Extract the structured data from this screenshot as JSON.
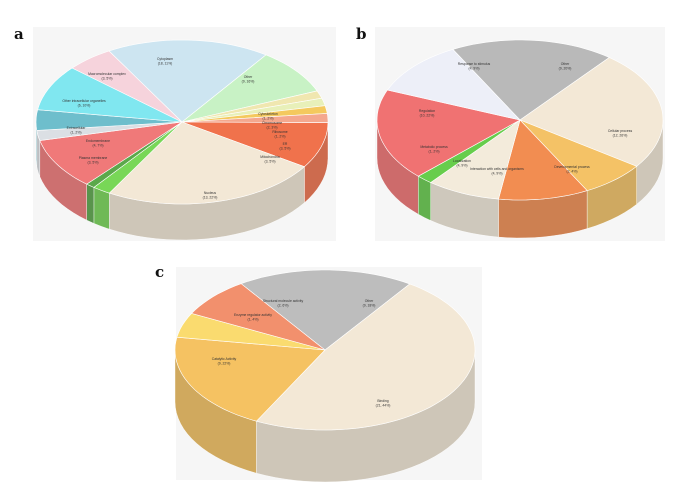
{
  "panels": [
    {
      "label": "a"
    },
    {
      "label": "b"
    },
    {
      "label": "c"
    }
  ],
  "chart_data": [
    {
      "type": "pie",
      "title": "",
      "slices": [
        {
          "name": "Cytoplasm",
          "display": "(18, 11%)",
          "value": 18,
          "color": "#c9e3f1"
        },
        {
          "name": "Other",
          "display": "(9, 16%)",
          "value": 9,
          "color": "#c3f2c0"
        },
        {
          "name": "Cytoskeleton",
          "display": "(1, 2%)",
          "value": 1.5,
          "color": "#efe6a8"
        },
        {
          "name": "Chromosome",
          "display": "(2, 3%)",
          "value": 1.5,
          "color": "#e7efb3"
        },
        {
          "name": "Ribosome",
          "display": "(1, 2%)",
          "value": 1.5,
          "color": "#f4c44e"
        },
        {
          "name": "ER",
          "display": "(3, 5%)",
          "value": 1.8,
          "color": "#f4a083"
        },
        {
          "name": "Mitochondria",
          "display": "(3, 5%)",
          "value": 9,
          "color": "#f0643a"
        },
        {
          "name": "Nucleus",
          "display": "(13, 22%)",
          "value": 24,
          "color": "#f3e7d3"
        },
        {
          "name": "Extracellular",
          "display": "",
          "value": 2,
          "color": "#6ad446"
        },
        {
          "name": "Plasma membrane (dark)",
          "display": "",
          "value": 1,
          "color": "#4aa038"
        },
        {
          "name": "Endomembrane",
          "display": "(4, 7%)",
          "value": 10,
          "color": "#f06b6b"
        },
        {
          "name": "Plasma membrane",
          "display": "(3, 5%)",
          "value": 2,
          "color": "#d8dde2"
        },
        {
          "name": "Extracellular",
          "display": "(1, 2%)",
          "value": 4,
          "color": "#5fb8c8"
        },
        {
          "name": "Other intracellular organelles",
          "display": "(6, 10%)",
          "value": 9,
          "color": "#73e5f0"
        },
        {
          "name": "Macromolecular complex",
          "display": "(3, 5%)",
          "value": 5.2,
          "color": "#f6cfd9"
        }
      ],
      "labels": [
        {
          "text": "Cytoplasm",
          "value": "(18, 11%)"
        },
        {
          "text": "Other",
          "value": "(9, 16%)"
        },
        {
          "text": "Cytoskeleton",
          "value": "(1, 2%)"
        },
        {
          "text": "Chromosome",
          "value": "(2, 3%)"
        },
        {
          "text": "Ribosome",
          "value": "(1, 2%)"
        },
        {
          "text": "ER",
          "value": "(3, 5%)"
        },
        {
          "text": "Mitochondria",
          "value": "(3, 5%)"
        },
        {
          "text": "Nucleus",
          "value": "(13, 22%)"
        },
        {
          "text": "Extracellular",
          "value": "(1, 2%)"
        },
        {
          "text": "Endomembrane",
          "value": "(4, 7%)"
        },
        {
          "text": "Plasma membrane",
          "value": "(3, 5%)"
        },
        {
          "text": "Other intracellular organelles",
          "value": "(6, 10%)"
        },
        {
          "text": "Macromolecular complex",
          "value": "(3, 5%)"
        }
      ]
    },
    {
      "type": "pie",
      "title": "",
      "slices": [
        {
          "name": "Other",
          "display": "(9, 20%)",
          "value": 20,
          "color": "#b2b2b2"
        },
        {
          "name": "Cellular process",
          "display": "(12, 26%)",
          "value": 26,
          "color": "#f3e7d3"
        },
        {
          "name": "Developmental process",
          "display": "(2, 4%)",
          "value": 8,
          "color": "#f4bd56"
        },
        {
          "name": "Interaction with cells and organisms",
          "display": "(4, 9%)",
          "value": 11,
          "color": "#f2823f"
        },
        {
          "name": "Localization",
          "display": "(4, 9%)",
          "value": 9,
          "color": "#f3ead8"
        },
        {
          "name": "Metabolic process",
          "display": "(1, 2%)",
          "value": 2,
          "color": "#58c93a"
        },
        {
          "name": "Regulation",
          "display": "(10, 22%)",
          "value": 20,
          "color": "#f06464"
        },
        {
          "name": "Response to stimulus",
          "display": "(4, 9%)",
          "value": 12,
          "color": "#eceef8"
        }
      ],
      "labels": [
        {
          "text": "Other",
          "value": "(9, 20%)"
        },
        {
          "text": "Cellular process",
          "value": "(12, 26%)"
        },
        {
          "text": "Developmental process",
          "value": "(2, 4%)"
        },
        {
          "text": "Interaction with cells and organisms",
          "value": "(4, 9%)"
        },
        {
          "text": "Localization",
          "value": "(4, 9%)"
        },
        {
          "text": "Metabolic process",
          "value": "(1, 2%)"
        },
        {
          "text": "Regulation",
          "value": "(10, 22%)"
        },
        {
          "text": "Response to stimulus",
          "value": "(4, 9%)"
        }
      ]
    },
    {
      "type": "pie",
      "title": "",
      "slices": [
        {
          "name": "Other",
          "display": "(9, 18%)",
          "value": 19,
          "color": "#b7b7b7"
        },
        {
          "name": "Binding",
          "display": "(21, 44%)",
          "value": 48,
          "color": "#f3e7d3"
        },
        {
          "name": "Catalytic Activity",
          "display": "(9, 22%)",
          "value": 20,
          "color": "#f5bd52"
        },
        {
          "name": "Enzyme regulator activity",
          "display": "(1, 4%)",
          "value": 5,
          "color": "#fbd861"
        },
        {
          "name": "Structural molecule activity",
          "display": "(2, 6%)",
          "value": 8,
          "color": "#f2855e"
        }
      ],
      "labels": [
        {
          "text": "Other",
          "value": "(9, 18%)"
        },
        {
          "text": "Binding",
          "value": "(21, 44%)"
        },
        {
          "text": "Catalytic Activity",
          "value": "(9, 22%)"
        },
        {
          "text": "Enzyme regulator activity",
          "value": "(1, 4%)"
        },
        {
          "text": "Structural molecule activity",
          "value": "(2, 6%)"
        }
      ]
    }
  ]
}
